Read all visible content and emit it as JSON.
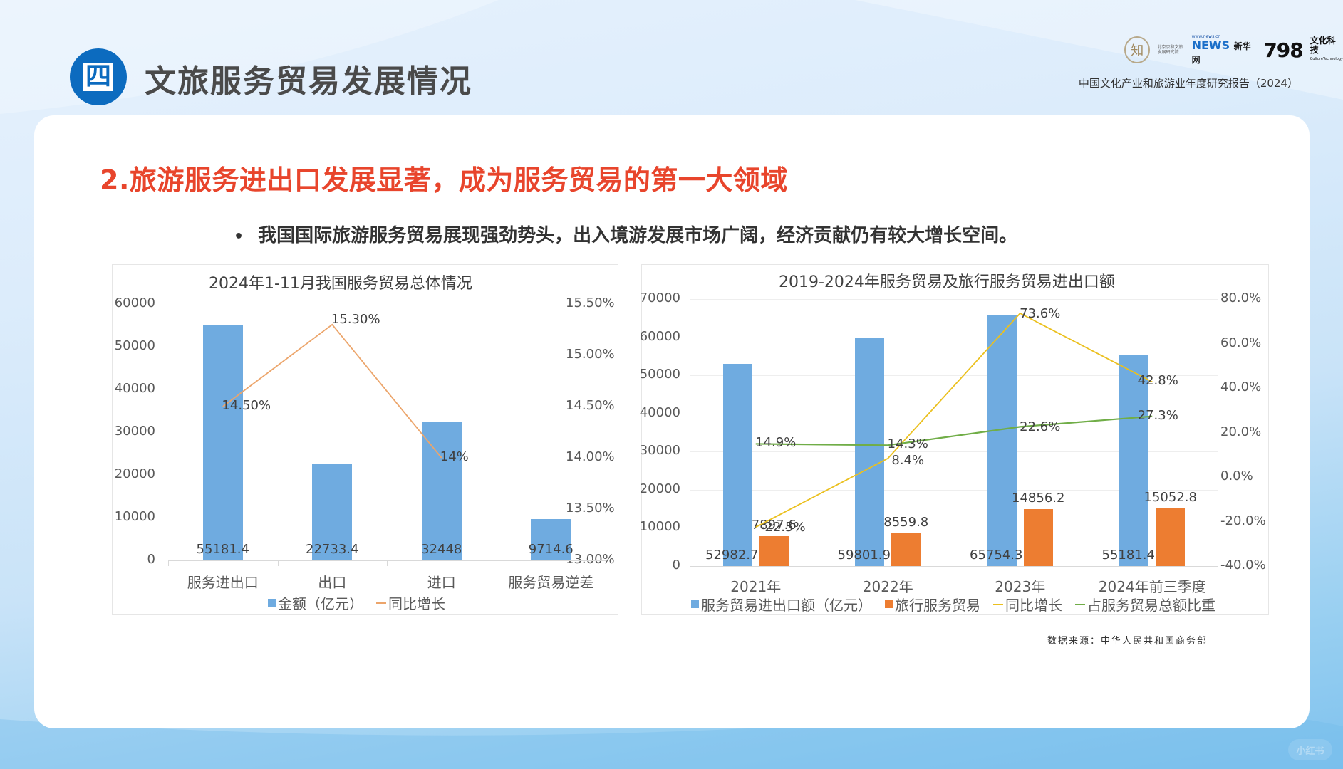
{
  "header": {
    "badge": "四",
    "title": "文旅服务贸易发展情况",
    "report_name": "中国文化产业和旅游业年度研究报告（2024）",
    "logos": [
      {
        "name": "seal-logo",
        "glyph": "知",
        "text": "北京京和文旅发展研究院"
      },
      {
        "name": "xinhua-logo",
        "url": "www.news.cn",
        "main": "NEWS",
        "cn": "新华网"
      },
      {
        "name": "798-logo",
        "main": "798",
        "cn": "文化科技",
        "en": "CultureTechnology"
      }
    ]
  },
  "section": {
    "title": "2.旅游服务进出口发展显著，成为服务贸易的第一大领域",
    "bullet": "我国国际旅游服务贸易展现强劲势头，出入境游发展市场广阔，经济贡献仍有较大增长空间。",
    "bullet_marker": "•"
  },
  "colors": {
    "title_red": "#e8452c",
    "badge_blue": "#0c6bbf",
    "bar_blue": "#6fabe0",
    "bar_orange": "#ed7d31",
    "line_orange": "#eca56b",
    "line_yellow": "#ebc01e",
    "line_green": "#70ad47"
  },
  "chart_data": [
    {
      "type": "bar",
      "title": "2024年1-11月我国服务贸易总体情况",
      "categories": [
        "服务进出口",
        "出口",
        "进口",
        "服务贸易逆差"
      ],
      "series": [
        {
          "name": "金额（亿元）",
          "type": "bar",
          "axis": "left",
          "values": [
            55181.4,
            22733.4,
            32448,
            9714.6
          ],
          "labels": [
            "55181.4",
            "22733.4",
            "32448",
            "9714.6"
          ]
        },
        {
          "name": "同比增长",
          "type": "line",
          "axis": "right",
          "values": [
            14.5,
            15.3,
            14.0
          ],
          "labels": [
            "14.50%",
            "15.30%",
            "14%"
          ]
        }
      ],
      "ylim": [
        0,
        60000
      ],
      "yticks": [
        "0",
        "10000",
        "20000",
        "30000",
        "40000",
        "50000",
        "60000"
      ],
      "y2lim": [
        13.0,
        15.5
      ],
      "y2ticks": [
        "13.00%",
        "13.50%",
        "14.00%",
        "14.50%",
        "15.00%",
        "15.50%"
      ],
      "legend": [
        {
          "label": "金额（亿元）",
          "kind": "square",
          "color": "#6fabe0"
        },
        {
          "label": "同比增长",
          "kind": "line",
          "color": "#eca56b"
        }
      ],
      "legend_position": "bottom",
      "grid": false
    },
    {
      "type": "bar",
      "title": "2019-2024年服务贸易及旅行服务贸易进出口额",
      "categories": [
        "2021年",
        "2022年",
        "2023年",
        "2024年前三季度"
      ],
      "series": [
        {
          "name": "服务贸易进出口额（亿元）",
          "type": "bar",
          "axis": "left",
          "values": [
            52982.7,
            59801.9,
            65754.3,
            55181.4
          ],
          "labels": [
            "52982.7",
            "59801.9",
            "65754.3",
            "55181.4"
          ]
        },
        {
          "name": "旅行服务贸易",
          "type": "bar",
          "axis": "left",
          "values": [
            7897.6,
            8559.8,
            14856.2,
            15052.8
          ],
          "labels": [
            "7897.6",
            "8559.8",
            "14856.2",
            "15052.8"
          ]
        },
        {
          "name": "同比增长",
          "type": "line",
          "axis": "right",
          "values": [
            -22.5,
            8.4,
            73.6,
            42.8
          ],
          "labels": [
            "-22.5%",
            "8.4%",
            "73.6%",
            "42.8%"
          ]
        },
        {
          "name": "占服务贸易总额比重",
          "type": "line",
          "axis": "right",
          "values": [
            14.9,
            14.3,
            22.6,
            27.3
          ],
          "labels": [
            "14.9%",
            "14.3%",
            "22.6%",
            "27.3%"
          ]
        }
      ],
      "ylim": [
        0,
        70000
      ],
      "yticks": [
        "0",
        "10000",
        "20000",
        "30000",
        "40000",
        "50000",
        "60000",
        "70000"
      ],
      "y2lim": [
        -40,
        80
      ],
      "y2ticks": [
        "-40.0%",
        "-20.0%",
        "0.0%",
        "20.0%",
        "40.0%",
        "60.0%",
        "80.0%"
      ],
      "legend": [
        {
          "label": "服务贸易进出口额（亿元）",
          "kind": "square",
          "color": "#6fabe0"
        },
        {
          "label": "旅行服务贸易",
          "kind": "square",
          "color": "#ed7d31"
        },
        {
          "label": "同比增长",
          "kind": "line",
          "color": "#ebc01e"
        },
        {
          "label": "占服务贸易总额比重",
          "kind": "line",
          "color": "#70ad47"
        }
      ],
      "legend_position": "bottom",
      "grid": true
    }
  ],
  "source_note": "数据来源：中华人民共和国商务部",
  "watermark": "小红书"
}
